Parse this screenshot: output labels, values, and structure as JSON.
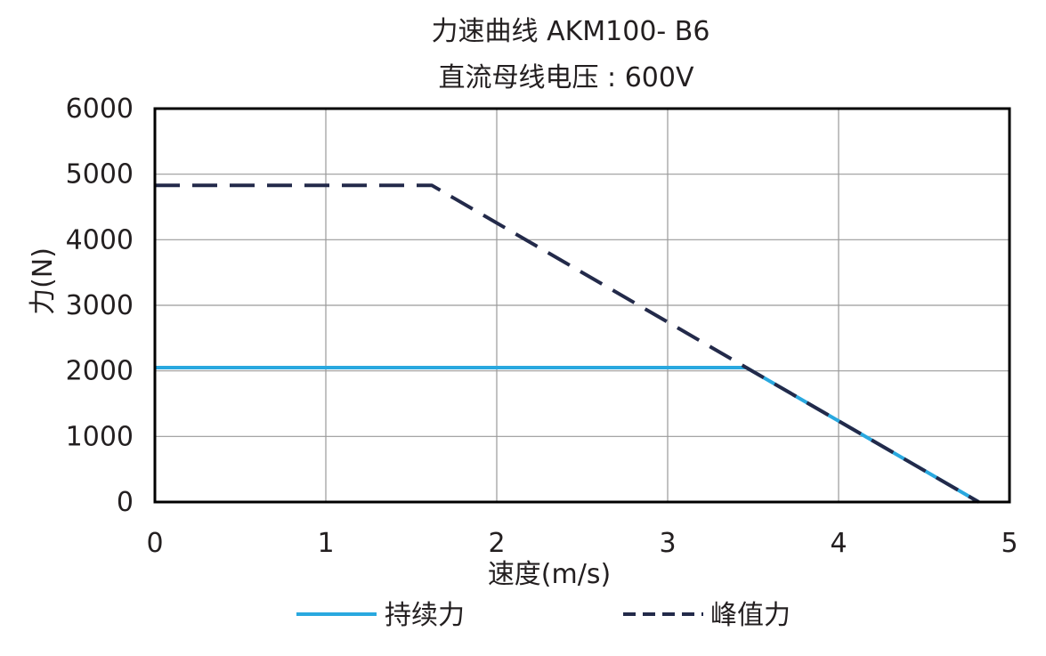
{
  "chart_data": {
    "type": "line",
    "title": "力速曲线 AKM100- B6",
    "subtitle": "直流母线电压 : 600V",
    "xlabel": "速度(m/s)",
    "ylabel": "力(N)",
    "xlim": [
      0,
      5
    ],
    "ylim": [
      0,
      6000
    ],
    "x_ticks": [
      "0",
      "1",
      "2",
      "3",
      "4",
      "5"
    ],
    "y_ticks": [
      "0",
      "1000",
      "2000",
      "3000",
      "4000",
      "5000",
      "6000"
    ],
    "grid": true,
    "legend_position": "bottom",
    "series": [
      {
        "name": "持续力",
        "color": "#29a8df",
        "style": "solid",
        "points": [
          [
            0,
            2050
          ],
          [
            3.46,
            2050
          ],
          [
            4.82,
            0
          ]
        ]
      },
      {
        "name": "峰值力",
        "color": "#232a4a",
        "style": "dashed",
        "points": [
          [
            0,
            4830
          ],
          [
            1.62,
            4830
          ],
          [
            3.46,
            2050
          ],
          [
            4.82,
            0
          ]
        ]
      }
    ]
  }
}
